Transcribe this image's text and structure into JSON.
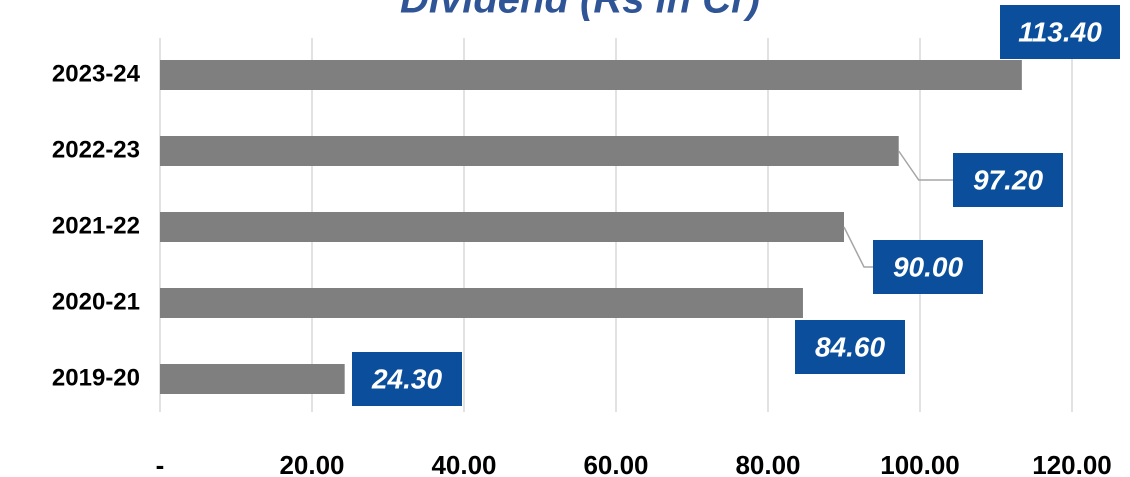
{
  "chart_data": {
    "type": "bar",
    "orientation": "horizontal",
    "title": "Dividend (Rs in Cr)",
    "categories": [
      "2023-24",
      "2022-23",
      "2021-22",
      "2020-21",
      "2019-20"
    ],
    "values": [
      113.4,
      97.2,
      90,
      84.6,
      24.3
    ],
    "value_labels": [
      "113.40",
      "97.20",
      "90.00",
      "84.60",
      "24.30"
    ],
    "color": "#7f7f7f",
    "label_color": "#0b4f9c",
    "xlim": [
      0,
      120
    ],
    "xticks": [
      {
        "value": 0,
        "label": "-"
      },
      {
        "value": 20,
        "label": "20.00"
      },
      {
        "value": 40,
        "label": "40.00"
      },
      {
        "value": 60,
        "label": "60.00"
      },
      {
        "value": 80,
        "label": "80.00"
      },
      {
        "value": 100,
        "label": "100.00"
      },
      {
        "value": 120,
        "label": "120.00"
      }
    ],
    "grid": true
  }
}
